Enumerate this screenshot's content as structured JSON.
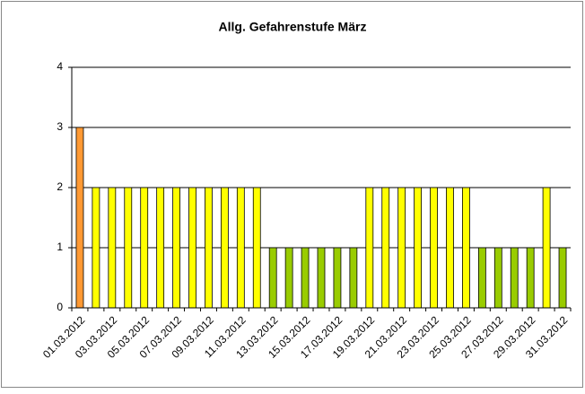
{
  "chart_data": {
    "type": "bar",
    "title": "Allg. Gefahrenstufe März",
    "categories": [
      "01.03.2012",
      null,
      "03.03.2012",
      null,
      "05.03.2012",
      null,
      "07.03.2012",
      null,
      "09.03.2012",
      null,
      "11.03.2012",
      null,
      "13.03.2012",
      null,
      "15.03.2012",
      null,
      "17.03.2012",
      null,
      "19.03.2012",
      null,
      "21.03.2012",
      null,
      "23.03.2012",
      null,
      "25.03.2012",
      null,
      "27.03.2012",
      null,
      "29.03.2012",
      null,
      "31.03.2012"
    ],
    "values": [
      3,
      2,
      2,
      2,
      2,
      2,
      2,
      2,
      2,
      2,
      2,
      2,
      1,
      1,
      1,
      1,
      1,
      1,
      2,
      2,
      2,
      2,
      2,
      2,
      2,
      1,
      1,
      1,
      1,
      2,
      1
    ],
    "colors": [
      "#ff9933",
      "#ffff00",
      "#ffff00",
      "#ffff00",
      "#ffff00",
      "#ffff00",
      "#ffff00",
      "#ffff00",
      "#ffff00",
      "#ffff00",
      "#ffff00",
      "#ffff00",
      "#99cc00",
      "#99cc00",
      "#99cc00",
      "#99cc00",
      "#99cc00",
      "#99cc00",
      "#ffff00",
      "#ffff00",
      "#ffff00",
      "#ffff00",
      "#ffff00",
      "#ffff00",
      "#ffff00",
      "#99cc00",
      "#99cc00",
      "#99cc00",
      "#99cc00",
      "#ffff00",
      "#99cc00"
    ],
    "ylim": [
      0,
      4
    ],
    "yticks": [
      0,
      1,
      2,
      3,
      4
    ],
    "grid": true
  }
}
